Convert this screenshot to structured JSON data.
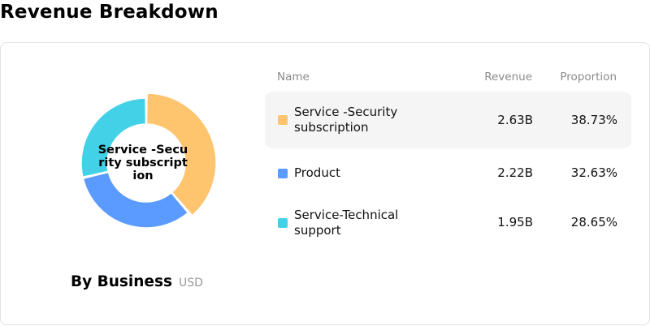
{
  "title": "Revenue Breakdown",
  "caption": {
    "main": "By Business",
    "unit": "USD"
  },
  "table": {
    "headers": {
      "name": "Name",
      "revenue": "Revenue",
      "proportion": "Proportion"
    }
  },
  "rows": [
    {
      "name": "Service -Security subscription",
      "revenue": "2.63B",
      "proportion": "38.73%",
      "color": "#FEC46E",
      "highlighted": true
    },
    {
      "name": "Product",
      "revenue": "2.22B",
      "proportion": "32.63%",
      "color": "#5B9BFF",
      "highlighted": false
    },
    {
      "name": "Service-Technical support",
      "revenue": "1.95B",
      "proportion": "28.65%",
      "color": "#43D1E7",
      "highlighted": false
    }
  ],
  "chart_data": {
    "type": "pie",
    "style": "donut",
    "categories": [
      "Service -Security subscription",
      "Product",
      "Service-Technical support"
    ],
    "values": [
      38.73,
      32.63,
      28.65
    ],
    "revenue_labels": [
      "2.63B",
      "2.22B",
      "1.95B"
    ],
    "colors": [
      "#FEC46E",
      "#5B9BFF",
      "#43D1E7"
    ],
    "center_label": "Service -Security subscription",
    "highlighted_slice": "Service -Security subscription",
    "legend": "right",
    "title": "By Business",
    "unit": "USD"
  }
}
